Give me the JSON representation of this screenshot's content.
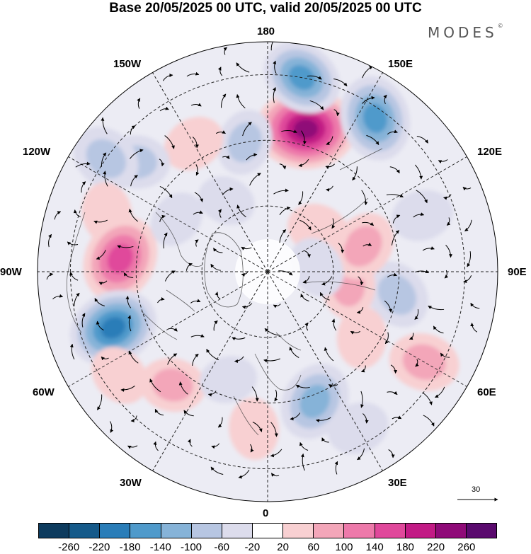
{
  "header": {
    "title": "Base 20/05/2025 00 UTC, valid 20/05/2025 00 UTC",
    "logo_text": "MODES",
    "logo_mark": "©"
  },
  "map": {
    "projection": "north-polar-stereographic",
    "longitude_labels": [
      "180",
      "150E",
      "120E",
      "90E",
      "60E",
      "30E",
      "0",
      "30W",
      "60W",
      "90W",
      "120W",
      "150W"
    ],
    "reference_vector_label": "30",
    "anomalies": [
      {
        "lon": 165,
        "lat": 45,
        "value": 240
      },
      {
        "lon": 170,
        "lat": 30,
        "value": -150
      },
      {
        "lon": 145,
        "lat": 33,
        "value": -170
      },
      {
        "lon": -170,
        "lat": 50,
        "value": -80
      },
      {
        "lon": -150,
        "lat": 45,
        "value": 60
      },
      {
        "lon": -130,
        "lat": 38,
        "value": -80
      },
      {
        "lon": -125,
        "lat": 30,
        "value": -100
      },
      {
        "lon": -110,
        "lat": 38,
        "value": 60
      },
      {
        "lon": -95,
        "lat": 45,
        "value": 180
      },
      {
        "lon": -70,
        "lat": 40,
        "value": -190
      },
      {
        "lon": -40,
        "lat": 45,
        "value": 80
      },
      {
        "lon": -55,
        "lat": 35,
        "value": 60
      },
      {
        "lon": -5,
        "lat": 42,
        "value": 60
      },
      {
        "lon": 20,
        "lat": 48,
        "value": -140
      },
      {
        "lon": 30,
        "lat": 35,
        "value": -60
      },
      {
        "lon": 60,
        "lat": 35,
        "value": 100
      },
      {
        "lon": 80,
        "lat": 50,
        "value": -100
      },
      {
        "lon": 80,
        "lat": 65,
        "value": 80
      },
      {
        "lon": 105,
        "lat": 60,
        "value": 100
      },
      {
        "lon": 110,
        "lat": 40,
        "value": -60
      },
      {
        "lon": 130,
        "lat": 70,
        "value": 60
      },
      {
        "lon": 95,
        "lat": 75,
        "value": -60
      },
      {
        "lon": 55,
        "lat": 55,
        "value": 60
      },
      {
        "lon": -120,
        "lat": 58,
        "value": -40
      },
      {
        "lon": -20,
        "lat": 55,
        "value": -40
      },
      {
        "lon": -150,
        "lat": 65,
        "value": -40
      }
    ]
  },
  "colorbar": {
    "colors": [
      "#0d3b5e",
      "#155a8a",
      "#2a7db8",
      "#4f9acb",
      "#86b3d8",
      "#b7c6e2",
      "#dcdcec",
      "#ffffff",
      "#f8d0d2",
      "#f3a6b9",
      "#ed79aa",
      "#e0489b",
      "#c21a85",
      "#8f0a78",
      "#5a0a6e"
    ],
    "labels": [
      "-260",
      "-220",
      "-180",
      "-140",
      "-100",
      "-60",
      "-20",
      "20",
      "60",
      "100",
      "140",
      "180",
      "220",
      "260"
    ]
  }
}
